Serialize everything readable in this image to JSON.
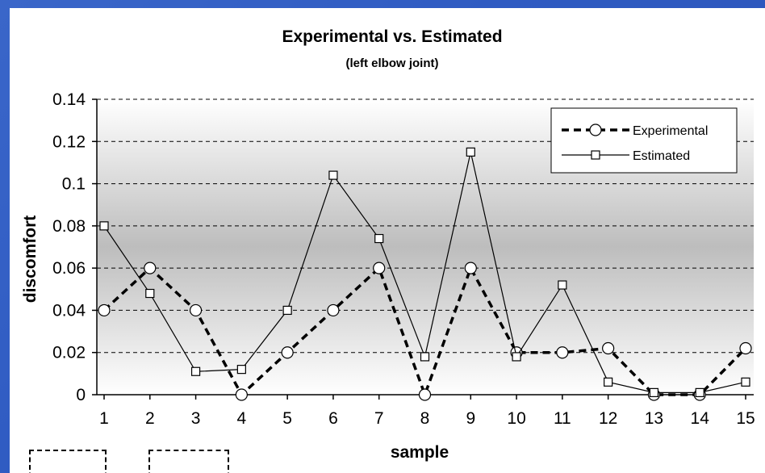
{
  "chart_data": {
    "type": "line",
    "title": "Experimental vs. Estimated",
    "subtitle": "(left elbow joint)",
    "xlabel": "sample",
    "ylabel": "discomfort",
    "categories": [
      "1",
      "2",
      "3",
      "4",
      "5",
      "6",
      "7",
      "8",
      "9",
      "10",
      "11",
      "12",
      "13",
      "14",
      "15"
    ],
    "ylim": [
      0,
      0.14
    ],
    "yticks": [
      "0",
      "0.02",
      "0.04",
      "0.06",
      "0.08",
      "0.1",
      "0.12",
      "0.14"
    ],
    "grid": true,
    "legend_position": "top-right",
    "series": [
      {
        "name": "Experimental",
        "marker": "circle",
        "line_style": "dashed-thick",
        "color": "#000000",
        "values": [
          0.04,
          0.06,
          0.04,
          0.0,
          0.02,
          0.04,
          0.06,
          0.0,
          0.06,
          0.02,
          0.02,
          0.022,
          0.0,
          0.0,
          0.022
        ]
      },
      {
        "name": "Estimated",
        "marker": "square",
        "line_style": "solid-thin",
        "color": "#000000",
        "values": [
          0.08,
          0.048,
          0.011,
          0.012,
          0.04,
          0.104,
          0.074,
          0.018,
          0.115,
          0.018,
          0.052,
          0.006,
          0.001,
          0.001,
          0.006
        ]
      }
    ]
  },
  "colors": {
    "slide_background": "#2f5bc2",
    "plot_gradient_edge": "#ffffff",
    "plot_gradient_center": "#bdbdbd"
  }
}
